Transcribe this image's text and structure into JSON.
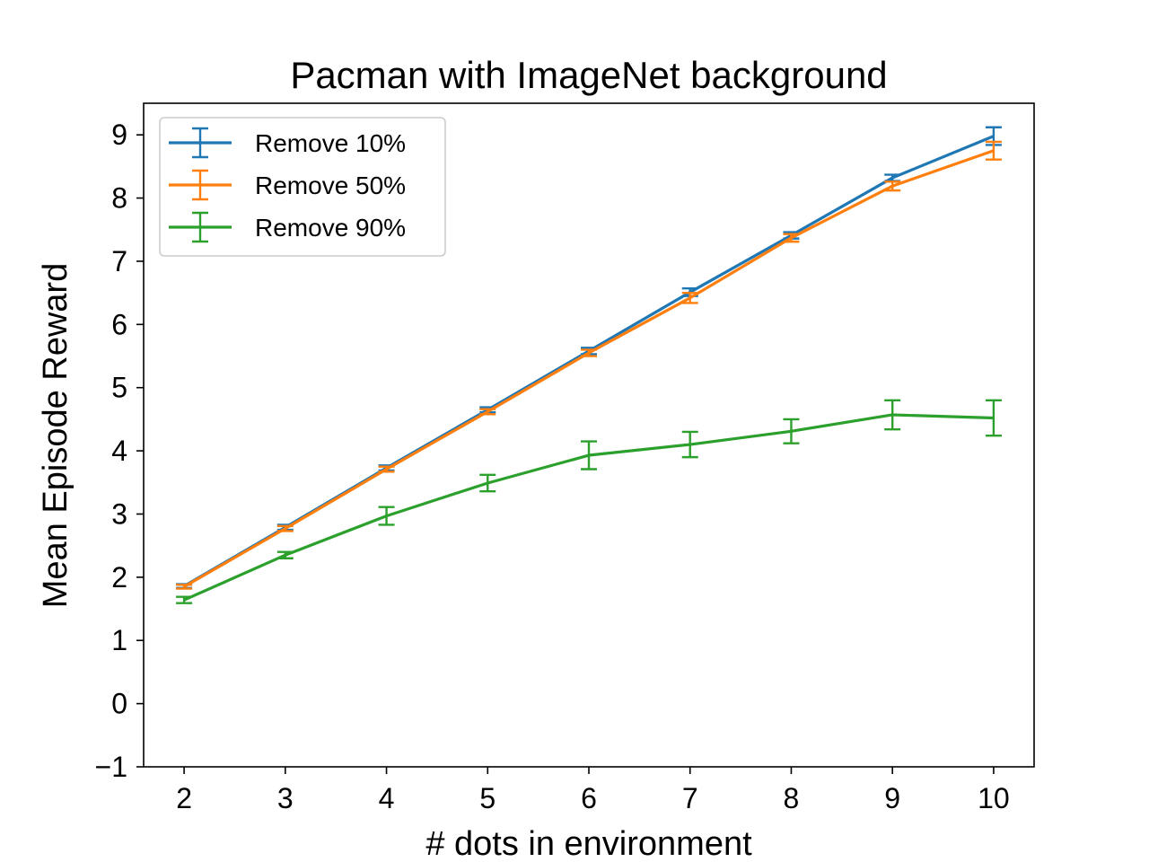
{
  "chart_data": {
    "type": "line",
    "title": "Pacman with ImageNet background",
    "xlabel": "# dots in environment",
    "ylabel": "Mean Episode Reward",
    "x": [
      2,
      3,
      4,
      5,
      6,
      7,
      8,
      9,
      10
    ],
    "xlim": [
      1.6,
      10.4
    ],
    "ylim": [
      -1,
      9.5
    ],
    "xticks": [
      2,
      3,
      4,
      5,
      6,
      7,
      8,
      9,
      10
    ],
    "yticks": [
      -1,
      0,
      1,
      2,
      3,
      4,
      5,
      6,
      7,
      8,
      9
    ],
    "ytick_labels": [
      "−1",
      "0",
      "1",
      "2",
      "3",
      "4",
      "5",
      "6",
      "7",
      "8",
      "9"
    ],
    "grid": false,
    "legend_position": "top-left",
    "series": [
      {
        "name": "Remove 10%",
        "color": "#1f77b4",
        "values": [
          1.86,
          2.79,
          3.73,
          4.65,
          5.58,
          6.51,
          7.41,
          8.32,
          8.98
        ],
        "errors": [
          0.03,
          0.04,
          0.04,
          0.04,
          0.05,
          0.06,
          0.05,
          0.05,
          0.14
        ]
      },
      {
        "name": "Remove 50%",
        "color": "#ff7f0e",
        "values": [
          1.85,
          2.77,
          3.71,
          4.62,
          5.55,
          6.42,
          7.37,
          8.19,
          8.75
        ],
        "errors": [
          0.03,
          0.04,
          0.04,
          0.04,
          0.05,
          0.08,
          0.06,
          0.07,
          0.14
        ]
      },
      {
        "name": "Remove 90%",
        "color": "#2ca02c",
        "values": [
          1.64,
          2.35,
          2.97,
          3.49,
          3.93,
          4.1,
          4.31,
          4.57,
          4.52
        ],
        "errors": [
          0.05,
          0.05,
          0.14,
          0.13,
          0.22,
          0.2,
          0.19,
          0.23,
          0.28
        ]
      }
    ]
  }
}
